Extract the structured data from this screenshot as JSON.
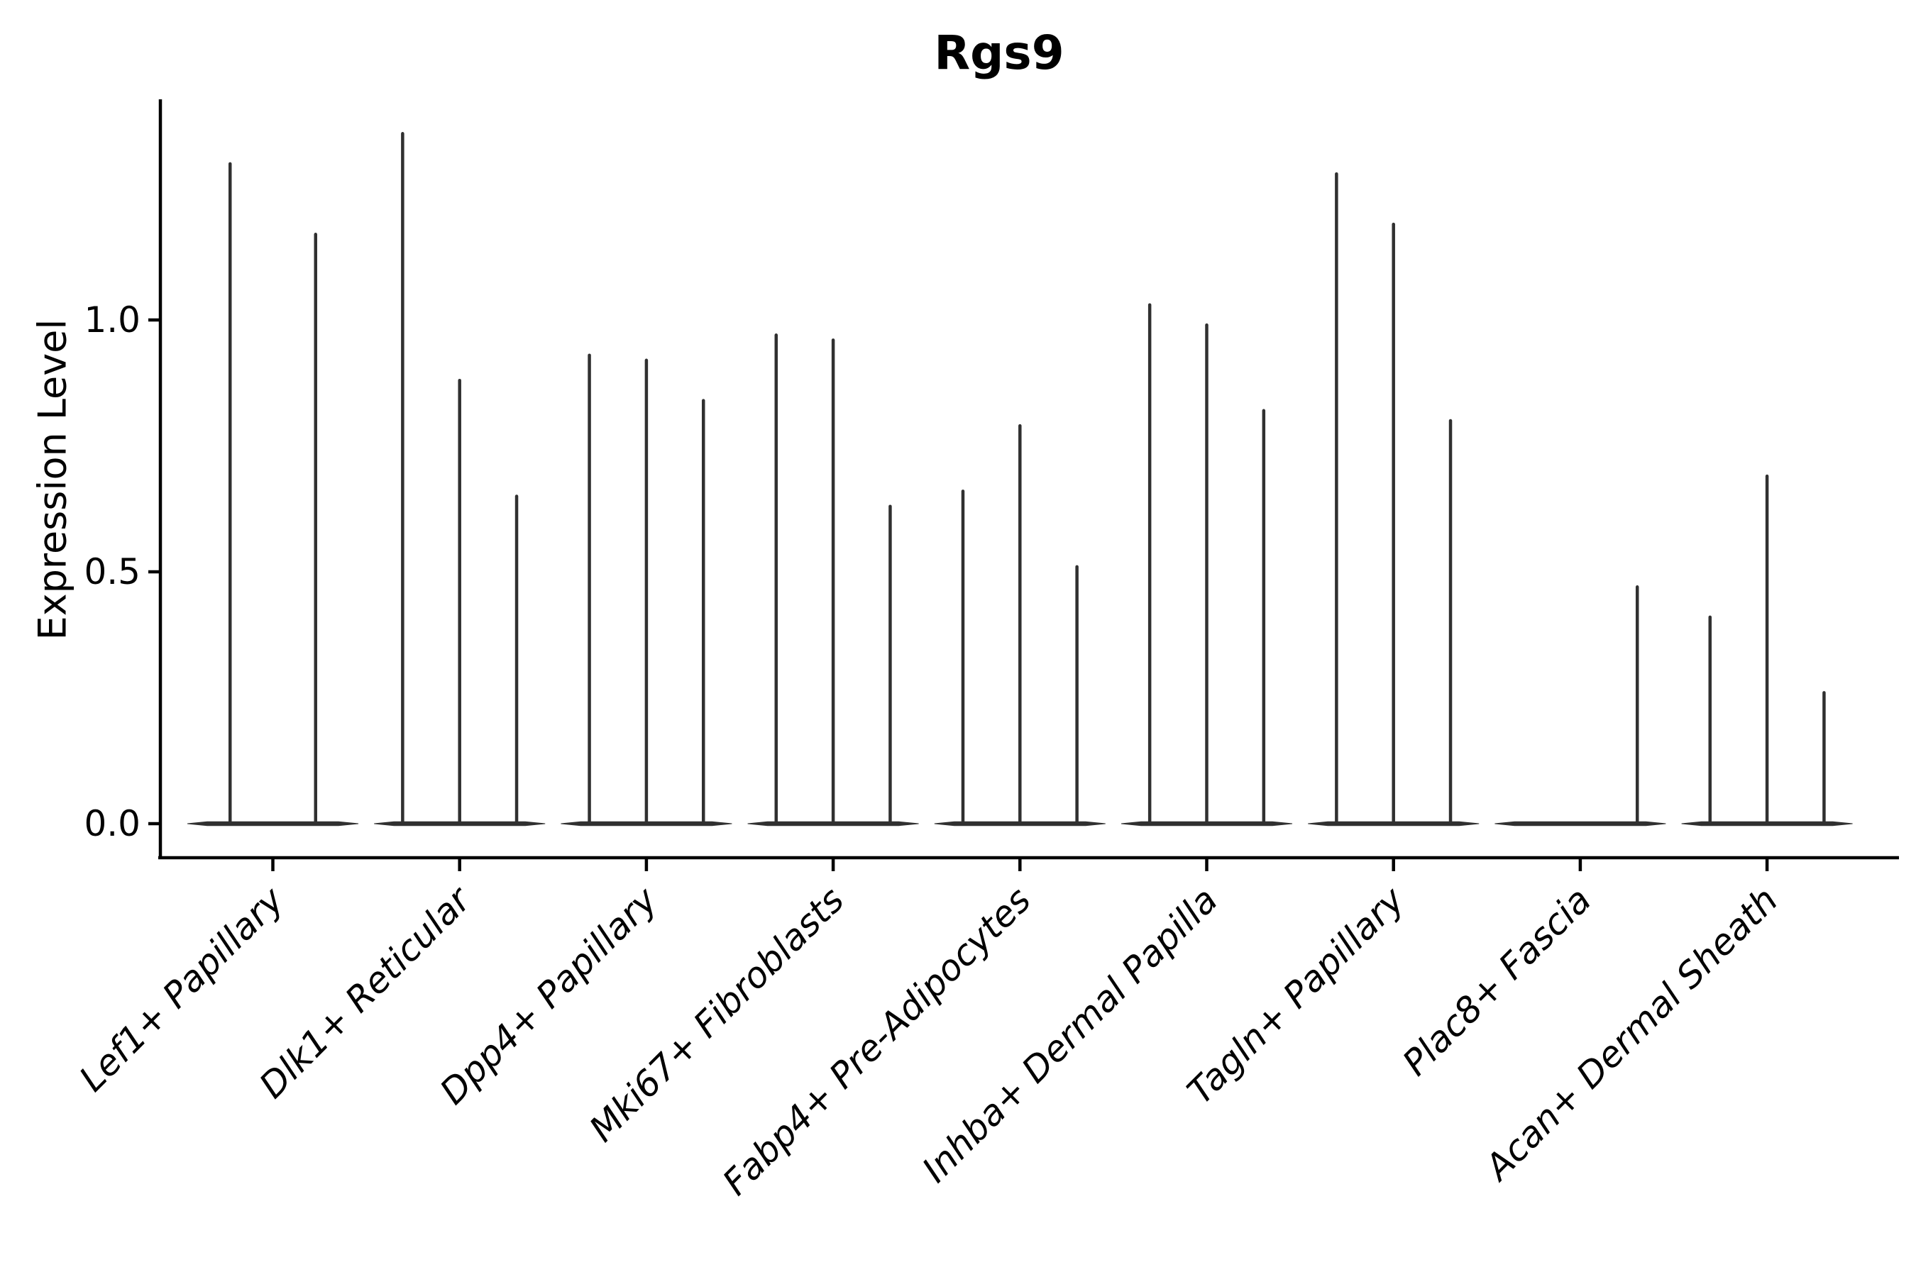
{
  "title": "Rgs9",
  "y_axis": {
    "label": "Expression Level",
    "tick_labels": [
      "0.0",
      "0.5",
      "1.0"
    ],
    "tick_values": [
      0.0,
      0.5,
      1.0
    ]
  },
  "x_axis": {
    "categories": [
      "Lef1+ Papillary",
      "Dlk1+ Reticular",
      "Dpp4+ Papillary",
      "Mki67+ Fibroblasts",
      "Fabp4+ Pre-Adipocytes",
      "Inhba+ Dermal Papilla",
      "Tagln+ Papillary",
      "Plac8+ Fascia",
      "Acan+ Dermal Sheath"
    ],
    "label_style": "italic, rotated 45deg"
  },
  "chart_data": {
    "type": "violin",
    "title": "Rgs9",
    "xlabel": "",
    "ylabel": "Expression Level",
    "ylim": [
      -0.07,
      1.44
    ],
    "yticks": [
      0.0,
      0.5,
      1.0
    ],
    "ytick_labels": [
      "0.0",
      "0.5",
      "1.0"
    ],
    "grid": false,
    "legend_position": "none",
    "violin_style": "needle violins: wide flat density mass at expression 0 with a thin spike up to the max value; violins share a merged flat base per category",
    "colors": {
      "violin": "#303030",
      "axis": "#000000",
      "text": "#000000",
      "background": "#ffffff"
    },
    "categories": [
      "Lef1+ Papillary",
      "Dlk1+ Reticular",
      "Dpp4+ Papillary",
      "Mki67+ Fibroblasts",
      "Fabp4+ Pre-Adipocytes",
      "Inhba+ Dermal Papilla",
      "Tagln+ Papillary",
      "Plac8+ Fascia",
      "Acan+ Dermal Sheath"
    ],
    "violins_per_category": [
      {
        "category": "Lef1+ Papillary",
        "max_values": [
          1.31,
          1.17
        ]
      },
      {
        "category": "Dlk1+ Reticular",
        "max_values": [
          1.37,
          0.88,
          0.65
        ]
      },
      {
        "category": "Dpp4+ Papillary",
        "max_values": [
          0.93,
          0.92,
          0.84
        ]
      },
      {
        "category": "Mki67+ Fibroblasts",
        "max_values": [
          0.97,
          0.96,
          0.63
        ]
      },
      {
        "category": "Fabp4+ Pre-Adipocytes",
        "max_values": [
          0.66,
          0.79,
          0.51
        ]
      },
      {
        "category": "Inhba+ Dermal Papilla",
        "max_values": [
          1.03,
          0.99,
          0.82
        ]
      },
      {
        "category": "Tagln+ Papillary",
        "max_values": [
          1.29,
          1.19,
          0.8
        ]
      },
      {
        "category": "Plac8+ Fascia",
        "max_values": [
          0.0,
          0.0,
          0.47
        ]
      },
      {
        "category": "Acan+ Dermal Sheath",
        "max_values": [
          0.41,
          0.69,
          0.26
        ]
      }
    ]
  }
}
